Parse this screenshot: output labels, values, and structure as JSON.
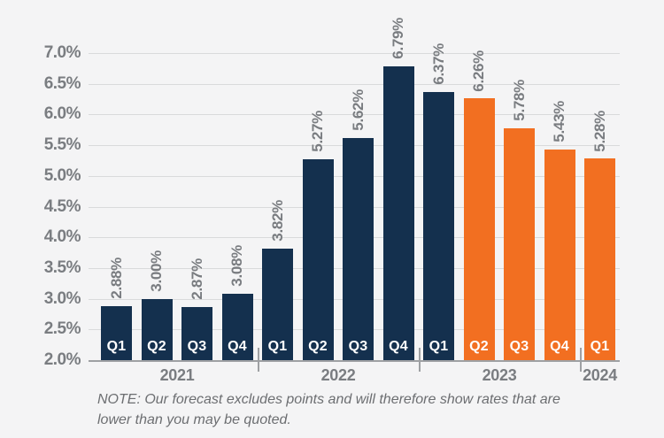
{
  "chart_data": {
    "type": "bar",
    "title": "",
    "xlabel": "",
    "ylabel": "",
    "ylim": [
      2.0,
      7.0
    ],
    "grid": true,
    "yticks_top_to_bottom": [
      "7.0%",
      "6.5%",
      "6.0%",
      "5.5%",
      "5.0%",
      "4.5%",
      "4.0%",
      "3.5%",
      "3.0%",
      "2.5%",
      "2.0%"
    ],
    "bars": [
      {
        "quarter": "Q1",
        "year": "2021",
        "value": 2.88,
        "label": "2.88%",
        "segment": "actual"
      },
      {
        "quarter": "Q2",
        "year": "2021",
        "value": 3.0,
        "label": "3.00%",
        "segment": "actual"
      },
      {
        "quarter": "Q3",
        "year": "2021",
        "value": 2.87,
        "label": "2.87%",
        "segment": "actual"
      },
      {
        "quarter": "Q4",
        "year": "2021",
        "value": 3.08,
        "label": "3.08%",
        "segment": "actual"
      },
      {
        "quarter": "Q1",
        "year": "2022",
        "value": 3.82,
        "label": "3.82%",
        "segment": "actual"
      },
      {
        "quarter": "Q2",
        "year": "2022",
        "value": 5.27,
        "label": "5.27%",
        "segment": "actual"
      },
      {
        "quarter": "Q3",
        "year": "2022",
        "value": 5.62,
        "label": "5.62%",
        "segment": "actual"
      },
      {
        "quarter": "Q4",
        "year": "2022",
        "value": 6.79,
        "label": "6.79%",
        "segment": "actual"
      },
      {
        "quarter": "Q1",
        "year": "2023",
        "value": 6.37,
        "label": "6.37%",
        "segment": "actual"
      },
      {
        "quarter": "Q2",
        "year": "2023",
        "value": 6.26,
        "label": "6.26%",
        "segment": "forecast"
      },
      {
        "quarter": "Q3",
        "year": "2023",
        "value": 5.78,
        "label": "5.78%",
        "segment": "forecast"
      },
      {
        "quarter": "Q4",
        "year": "2023",
        "value": 5.43,
        "label": "5.43%",
        "segment": "forecast"
      },
      {
        "quarter": "Q1",
        "year": "2024",
        "value": 5.28,
        "label": "5.28%",
        "segment": "forecast"
      }
    ],
    "years": [
      "2021",
      "2022",
      "2023",
      "2024"
    ],
    "colors": {
      "actual": "#14304e",
      "forecast": "#f26f21",
      "grid": "#d9dadb",
      "axis": "#9ea0a3",
      "tick_text": "#7a7d81",
      "bar_quarter_text": "#ffffff",
      "background": "#f4f4f5"
    },
    "legend": null
  },
  "note": {
    "text": "NOTE: Our forecast excludes points and will therefore show rates that are lower than you may be quoted."
  }
}
